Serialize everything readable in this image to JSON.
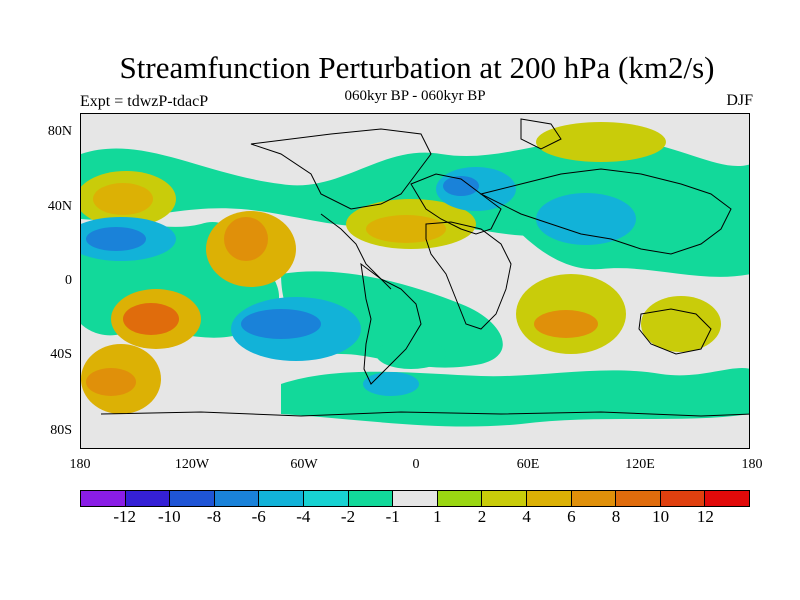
{
  "title": "Streamfunction Perturbation at 200 hPa (km2/s)",
  "left_subtitle": "Expt = tdwzP-tdacP",
  "center_subtitle": "060kyr BP - 060kyr BP",
  "right_subtitle": "DJF",
  "lat_labels": [
    "80N",
    "40N",
    "0",
    "40S",
    "80S"
  ],
  "lon_labels": [
    "180",
    "120W",
    "60W",
    "0",
    "60E",
    "120E",
    "180"
  ],
  "colorbar": {
    "colors": [
      "#8a1de6",
      "#3520d6",
      "#1f55d6",
      "#1a82d9",
      "#12b2d8",
      "#18d2d2",
      "#12d99a",
      "#e6e6e6",
      "#9ad712",
      "#c9cc0a",
      "#dcb105",
      "#e0900a",
      "#e06c0c",
      "#e0400f",
      "#e10a0a"
    ],
    "labels": [
      "-12",
      "-10",
      "-8",
      "-6",
      "-4",
      "-2",
      "-1",
      "1",
      "2",
      "4",
      "6",
      "8",
      "10",
      "12"
    ]
  },
  "map_fields": [
    {
      "name": "north-pacific-positive",
      "c": "#c9cc0a"
    },
    {
      "name": "north-pacific-core",
      "c": "#dcb105"
    },
    {
      "name": "central-pacific-negative",
      "c": "#12b2d8"
    },
    {
      "name": "central-pacific-core",
      "c": "#1a82d9"
    },
    {
      "name": "central-america-positive",
      "c": "#dcb105"
    },
    {
      "name": "central-america-core",
      "c": "#e0900a"
    },
    {
      "name": "south-pacific-positive",
      "c": "#dcb105"
    },
    {
      "name": "south-pacific-core",
      "c": "#e06c0c"
    },
    {
      "name": "south-america-negative",
      "c": "#12b2d8"
    },
    {
      "name": "south-america-core",
      "c": "#1a82d9"
    },
    {
      "name": "atlantic-positive",
      "c": "#c9cc0a"
    },
    {
      "name": "atlantic-core",
      "c": "#dcb105"
    },
    {
      "name": "europe-negative",
      "c": "#12b2d8"
    },
    {
      "name": "europe-core",
      "c": "#1a82d9"
    },
    {
      "name": "arctic-positive",
      "c": "#c9cc0a"
    },
    {
      "name": "indian-ocean-positive",
      "c": "#c9cc0a"
    },
    {
      "name": "indian-ocean-core",
      "c": "#e0900a"
    },
    {
      "name": "asia-negative",
      "c": "#12b2d8"
    },
    {
      "name": "west-pacific-positive",
      "c": "#c9cc0a"
    },
    {
      "name": "southern-ocean-negative",
      "c": "#12d99a"
    },
    {
      "name": "south-atlantic-negative",
      "c": "#12b2d8"
    },
    {
      "name": "far-south-pacific-positive",
      "c": "#dcb105"
    },
    {
      "name": "far-south-pacific-core",
      "c": "#e0900a"
    }
  ]
}
